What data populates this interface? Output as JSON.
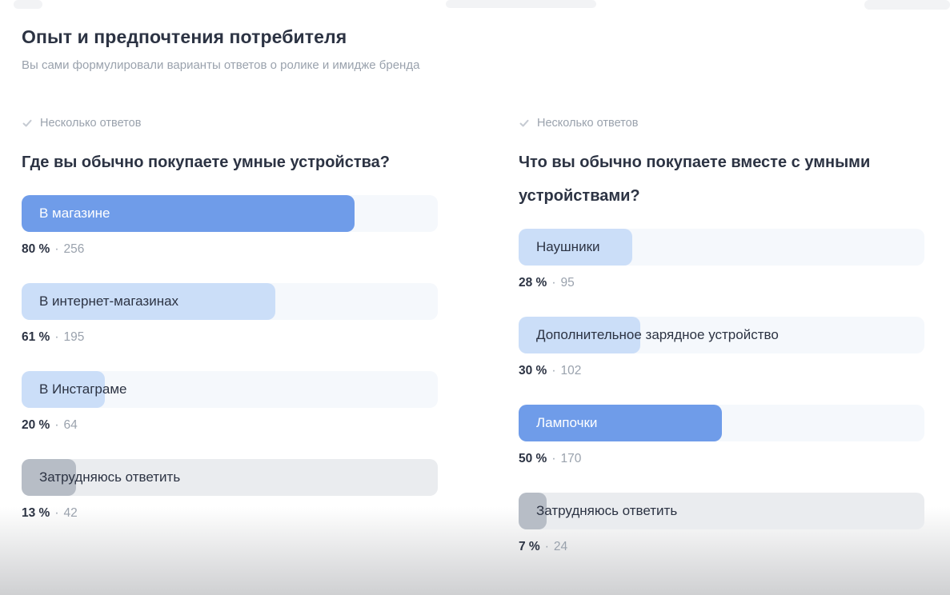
{
  "page": {
    "title": "Опыт и предпочтения потребителя",
    "subtitle": "Вы сами формулировали варианты ответов о ролике и имидже бренда"
  },
  "percent_suffix": " %",
  "separator": "·",
  "questions": [
    {
      "type_label": "Несколько ответов",
      "title": "Где вы обычно покупаете умные устройства?",
      "answers": [
        {
          "label": "В магазине",
          "percent": 80,
          "count": 256,
          "style": "primary"
        },
        {
          "label": "В интернет-магазинах",
          "percent": 61,
          "count": 195,
          "style": "light"
        },
        {
          "label": "В Инстаграме",
          "percent": 20,
          "count": 64,
          "style": "light"
        },
        {
          "label": "Затрудняюсь ответить",
          "percent": 13,
          "count": 42,
          "style": "muted"
        }
      ]
    },
    {
      "type_label": "Несколько ответов",
      "title": "Что вы обычно покупаете вместе с умными устройствами?",
      "answers": [
        {
          "label": "Наушники",
          "percent": 28,
          "count": 95,
          "style": "light"
        },
        {
          "label": "Дополнительное зарядное устройство",
          "percent": 30,
          "count": 102,
          "style": "light"
        },
        {
          "label": "Лампочки",
          "percent": 50,
          "count": 170,
          "style": "primary"
        },
        {
          "label": "Затрудняюсь ответить",
          "percent": 7,
          "count": 24,
          "style": "muted"
        }
      ]
    }
  ],
  "colors": {
    "accent_blue": "#6f9ce9",
    "light_blue": "#cbdef8",
    "gray_bar": "#b7bdc6",
    "text_dark": "#2c3343",
    "text_gray": "#9aa2ad",
    "track_blue": "#f5f8fc",
    "track_gray": "#eaecef",
    "check_icon": "#c5cad2"
  },
  "chart_data": [
    {
      "type": "bar",
      "orientation": "horizontal",
      "title": "Где вы обычно покупаете умные устройства?",
      "subtitle": "Несколько ответов",
      "categories": [
        "В магазине",
        "В интернет-магазинах",
        "В Инстаграме",
        "Затрудняюсь ответить"
      ],
      "values": [
        80,
        61,
        20,
        13
      ],
      "counts": [
        256,
        195,
        64,
        42
      ],
      "value_unit": "%",
      "xlim": [
        0,
        100
      ],
      "grid": false,
      "legend": false
    },
    {
      "type": "bar",
      "orientation": "horizontal",
      "title": "Что вы обычно покупаете вместе с умными устройствами?",
      "subtitle": "Несколько ответов",
      "categories": [
        "Наушники",
        "Дополнительное зарядное устройство",
        "Лампочки",
        "Затрудняюсь ответить"
      ],
      "values": [
        28,
        30,
        50,
        7
      ],
      "counts": [
        95,
        102,
        170,
        24
      ],
      "value_unit": "%",
      "xlim": [
        0,
        100
      ],
      "grid": false,
      "legend": false
    }
  ]
}
